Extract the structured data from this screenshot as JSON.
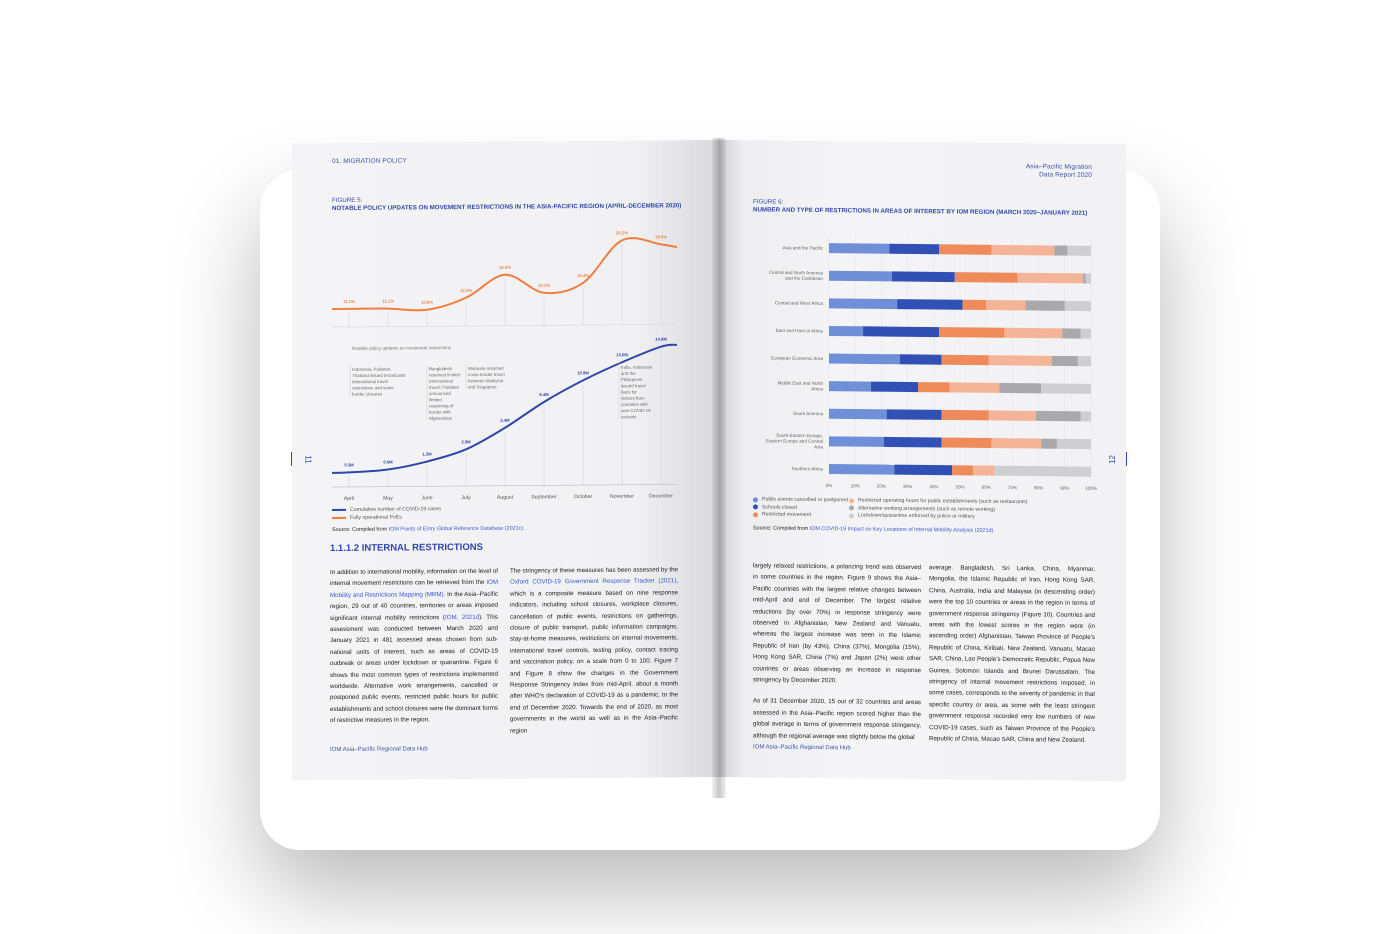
{
  "left_page": {
    "header": "01. MIGRATION POLICY",
    "figure_label": "FIGURE 5:",
    "figure_title": "NOTABLE POLICY UPDATES ON MOVEMENT RESTRICTIONS IN THE ASIA-PACIFIC REGION (APRIL-DECEMBER 2020)",
    "legend": [
      {
        "label": "Cumulative number of COVID-19 cases",
        "color": "#2d47a8"
      },
      {
        "label": "Fully operational PoEs",
        "color": "#ef7e3f"
      }
    ],
    "source_prefix": "Source: Compiled from ",
    "source_link": "IOM Points of Entry Global Reference Database (2021c).",
    "section_title": "1.1.1.2 INTERNAL RESTRICTIONS",
    "col1": [
      {
        "t": "In addition to international mobility, information on the level of internal movement restrictions can be retrieved from the "
      },
      {
        "t": "IOM Mobility and Restrictions Mapping (MRM)",
        "link": true
      },
      {
        "t": ". In the Asia–Pacific region, 29 out of 40 countries, territories or areas imposed significant internal mobility restrictions ("
      },
      {
        "t": "IOM, 2021d",
        "link": true
      },
      {
        "t": "). This assessment was conducted between March 2020 and January 2021 in 481 assessed areas chosen from sub-national units of interest, such as areas of COVID-19 outbreak or areas under lockdown or quarantine. Figure 6 shows the most common types of restrictions implemented worldwide. Alternative work arrangements, cancelled or postponed public events, restricted public hours for public establishments and school closures were the dominant forms of restrictive measures in the region."
      }
    ],
    "col2": [
      {
        "t": "The stringency of these measures has been assessed by the "
      },
      {
        "t": "Oxford COVID-19 Government Response Tracker (2021)",
        "link": true
      },
      {
        "t": ", which is a composite measure based on nine response indicators, including school closures, workplace closures, cancellation of public events, restrictions on gatherings, closure of public transport, public information campaigns, stay-at-home measures, restrictions on internal movements, international travel controls, testing policy, contact tracing and vaccination policy, on a scale from 0 to 100. Figure 7 and Figure 8 show the changes in the Government Response Stringency Index from mid-April, about a month after WHO’s declaration of COVID-19 as a pandemic, to the end of December 2020. Towards the end of 2020, as most governments in the world as well as in the Asia–Pacific region"
      }
    ],
    "footer": "IOM Asia–Pacific Regional Data Hub",
    "page_number": "11"
  },
  "right_page": {
    "header_line1": "Asia–Pacific Migration",
    "header_line2": "Data Report 2020",
    "figure_label": "FIGURE 6:",
    "figure_title": "NUMBER AND TYPE OF RESTRICTIONS IN AREAS OF INTEREST BY IOM REGION (MARCH 2020–JANUARY 2021)",
    "source_prefix": "Source: Compiled from ",
    "source_link": "IOM COVID-19 Impact on Key Locations of Internal Mobility Analysis (2021d).",
    "col1_p1": "largely relaxed restrictions, a polarizing trend was observed in some countries in the region. Figure 9 shows the Asia–Pacific countries with the largest relative changes between mid-April and end of December. The largest relative reductions (by over 70%) in response stringency were observed in Afghanistan, New Zealand and Vanuatu, whereas the largest increase was seen in the Islamic Republic of Iran (by 43%), China (37%), Mongolia (15%), Hong Kong SAR, China (7%) and Japan (2%) were other countries or areas observing an increase in response stringency by December 2020.",
    "col1_p2": "As of 31 December 2020, 15 out of 32 countries and areas assessed in the Asia–Pacific region scored higher than the global average in terms of government response stringency, although the regional average was slightly below the global",
    "col2": "average. Bangladesh, Sri Lanka, China, Myanmar, Mongolia, the Islamic Republic of Iran, Hong Kong SAR, China, Australia, India and Malaysia (in descending order) were the top 10 countries or areas in the region in terms of government response stringency (Figure 10). Countries and areas with the lowest scores in the region were (in ascending order) Afghanistan, Taiwan Province of People’s Republic of China, Kiribati, New Zealand, Vanuatu, Macao SAR, China, Lao People’s Democratic Republic, Papua New Guinea, Solomon Islands and Brunei Darussalam. The stringency of internal movement restrictions imposed, in some cases, corresponds to the severity of pandemic in that specific country or area, as some with the least stringent government response recorded very low numbers of new COVID-19 cases, such as Taiwan Province of the People’s Republic of China, Macao SAR, China and New Zealand.",
    "footer": "IOM Asia–Pacific Regional Data Hub",
    "page_number": "12"
  },
  "colors": {
    "blue_light": "#6f8fd8",
    "blue_dark": "#3150b5",
    "orange_dark": "#ef8a5b",
    "orange_light": "#f3b497",
    "grey_dark": "#a9a9ac",
    "grey_light": "#cfcfd2",
    "accent_blue": "#2e4aa8",
    "accent_orange": "#ef7e3f"
  },
  "chart_data": [
    {
      "type": "line",
      "title": "NOTABLE POLICY UPDATES ON MOVEMENT RESTRICTIONS IN THE ASIA-PACIFIC REGION (APRIL-DECEMBER 2020)",
      "x": [
        "April",
        "May",
        "June",
        "July",
        "August",
        "September",
        "October",
        "November",
        "December"
      ],
      "series": [
        {
          "name": "Fully operational PoEs",
          "color": "#ef7e3f",
          "x": [
            "April",
            "May",
            "June",
            "July",
            "August",
            "September",
            "October",
            "November",
            "December"
          ],
          "values": [
            11.1,
            11.1,
            10.9,
            12.5,
            15.6,
            13.1,
            14.4,
            20.2,
            19.6
          ],
          "labels": [
            "11.1%",
            "11.1%",
            "10.9%",
            "12.5%",
            "15.6%",
            "13.1%",
            "14.4%",
            "20.2%",
            "19.6%"
          ]
        },
        {
          "name": "Cumulative number of COVID-19 cases",
          "color": "#2d47a8",
          "x": [
            "April",
            "May",
            "June",
            "July",
            "August",
            "September",
            "October",
            "November",
            "December"
          ],
          "values": [
            0.3,
            0.6,
            1.5,
            2.9,
            5.4,
            8.4,
            10.9,
            13.0,
            14.8
          ],
          "labels": [
            "0.3M",
            "0.6M",
            "1.5M",
            "2.9M",
            "5.4M",
            "8.4M",
            "10.9M",
            "13.0M",
            "14.8M"
          ]
        }
      ],
      "annotation_header": "Notable policy updates on movement restrictions",
      "annotations": [
        {
          "month": "April",
          "text": "Indonesia, Pakistan, Thailand issued broadcasts international travel restrictions and some border closures"
        },
        {
          "month": "June",
          "text": "Bangladesh resumed limited international travel; Pakistan announced limited reopening of border with Afghanistan"
        },
        {
          "month": "July",
          "text": "Malaysia resumed cross-border travel between Malaysia and Singapore"
        },
        {
          "month": "November",
          "text": "India, Indonesia and the Philippines issued travel bans for visitors from countries with new COVID-19 variants"
        }
      ]
    },
    {
      "type": "bar",
      "stacked": true,
      "orientation": "horizontal",
      "title": "NUMBER AND TYPE OF RESTRICTIONS IN AREAS OF INTEREST BY IOM REGION (MARCH 2020–JANUARY 2021)",
      "categories": [
        "Asia and the Pacific",
        "Central and North America and the Caribbean",
        "Central and West Africa",
        "East and Horn of Africa",
        "European Economic Area",
        "Middle East and North Africa",
        "South America",
        "South-Eastern Europe, Eastern Europe and Central Asia",
        "Southern Africa"
      ],
      "xlim": [
        0,
        100
      ],
      "xticks": [
        "0%",
        "10%",
        "20%",
        "30%",
        "40%",
        "50%",
        "60%",
        "70%",
        "80%",
        "90%",
        "100%"
      ],
      "series": [
        {
          "name": "Public events cancelled or postponed",
          "color": "#6f8fd8",
          "values": [
            23,
            24,
            26,
            13,
            27,
            16,
            22,
            21,
            25
          ]
        },
        {
          "name": "Schools closed",
          "color": "#3150b5",
          "values": [
            19,
            24,
            25,
            29,
            16,
            18,
            21,
            22,
            22
          ]
        },
        {
          "name": "Restricted movement",
          "color": "#ef8a5b",
          "values": [
            20,
            24,
            9,
            25,
            18,
            12,
            18,
            19,
            8
          ]
        },
        {
          "name": "Restricted operating hours for public establishments (such as restaurants)",
          "color": "#f3b497",
          "values": [
            24,
            25,
            15,
            22,
            24,
            19,
            18,
            19,
            8
          ]
        },
        {
          "name": "Alternative working arrangements (such as remote working)",
          "color": "#a9a9ac",
          "values": [
            5,
            1,
            15,
            7,
            10,
            16,
            17,
            6,
            0
          ]
        },
        {
          "name": "Lockdown/quarantine enforced by police or military",
          "color": "#cfcfd2",
          "values": [
            9,
            2,
            10,
            4,
            5,
            19,
            4,
            13,
            37
          ]
        }
      ]
    }
  ]
}
